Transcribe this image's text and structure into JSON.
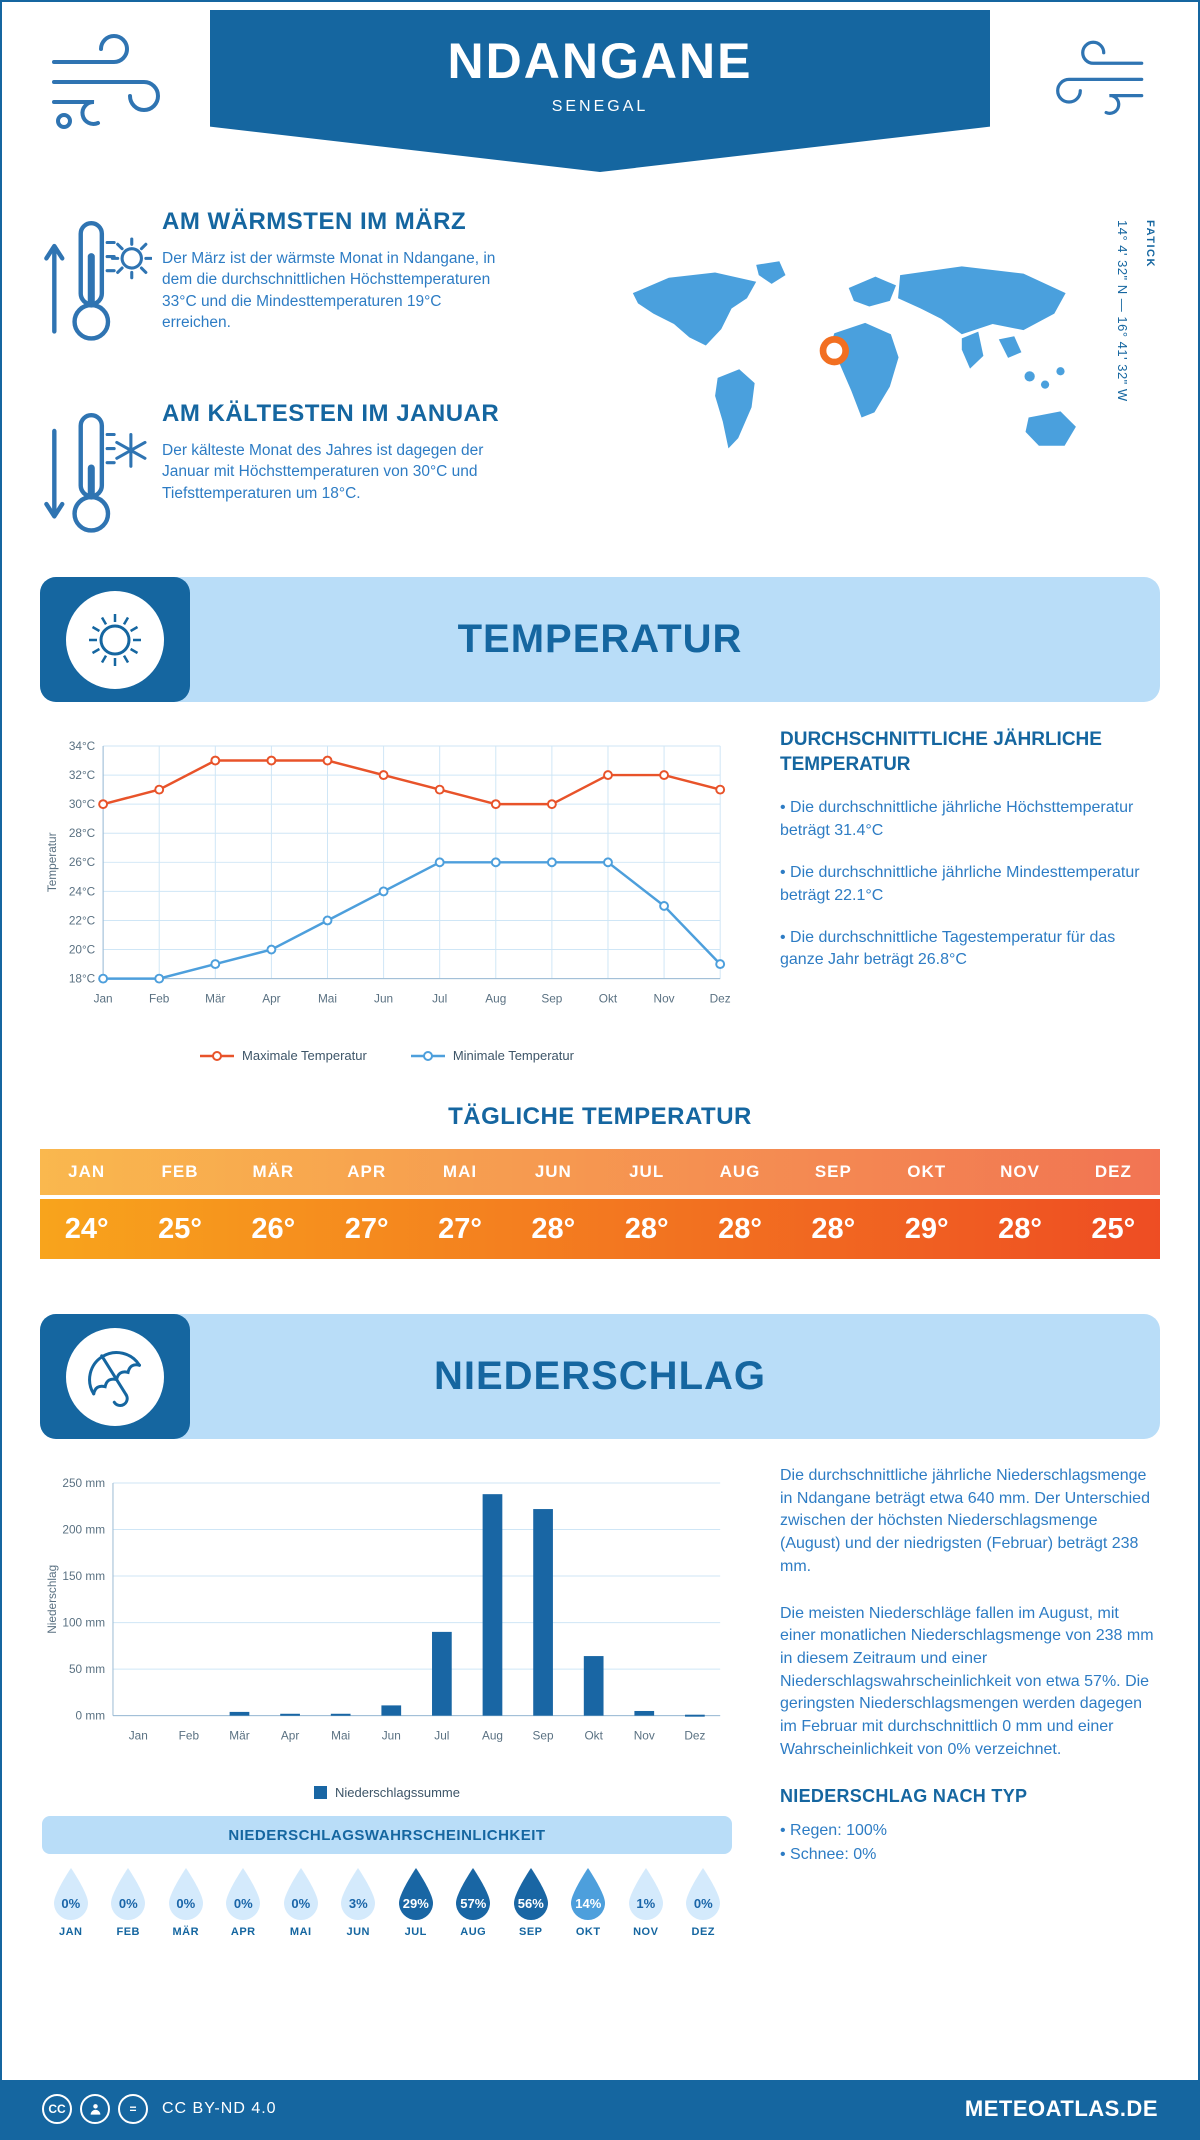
{
  "meta": {
    "title": "NDANGANE",
    "subtitle": "SENEGAL"
  },
  "intro": {
    "warm": {
      "heading": "AM WÄRMSTEN IM MÄRZ",
      "text": "Der März ist der wärmste Monat in Ndangane, in dem die durchschnittlichen Höchsttemperaturen 33°C und die Mindesttemperaturen 19°C erreichen."
    },
    "cold": {
      "heading": "AM KÄLTESTEN IM JANUAR",
      "text": "Der kälteste Monat des Jahres ist dagegen der Januar mit Höchsttemperaturen von 30°C und Tiefsttemperaturen um 18°C."
    },
    "map": {
      "region_label": "FATICK",
      "coordinates": "14° 4' 32\" N — 16° 41' 32\" W"
    }
  },
  "temperature_section": {
    "banner": "TEMPERATUR",
    "summary_heading": "DURCHSCHNITTLICHE JÄHRLICHE TEMPERATUR",
    "bullets": [
      "• Die durchschnittliche jährliche Höchsttemperatur beträgt 31.4°C",
      "• Die durchschnittliche jährliche Mindesttemperatur beträgt 22.1°C",
      "• Die durchschnittliche Tagestemperatur für das ganze Jahr beträgt 26.8°C"
    ],
    "daily_heading": "TÄGLICHE TEMPERATUR"
  },
  "precipitation_section": {
    "banner": "NIEDERSCHLAG",
    "paragraphs": [
      "Die durchschnittliche jährliche Niederschlagsmenge in Ndangane beträgt etwa 640 mm. Der Unterschied zwischen der höchsten Niederschlagsmenge (August) und der niedrigsten (Februar) beträgt 238 mm.",
      "Die meisten Niederschläge fallen im August, mit einer monatlichen Niederschlagsmenge von 238 mm in diesem Zeitraum und einer Niederschlagswahrscheinlichkeit von etwa 57%. Die geringsten Niederschlagsmengen werden dagegen im Februar mit durchschnittlich 0 mm und einer Wahrscheinlichkeit von 0% verzeichnet."
    ],
    "probability_heading": "NIEDERSCHLAGSWAHRSCHEINLICHKEIT",
    "type_heading": "NIEDERSCHLAG NACH TYP",
    "type_bullets": [
      "• Regen: 100%",
      "• Schnee: 0%"
    ]
  },
  "footer": {
    "license": "CC BY-ND 4.0",
    "brand": "METEOATLAS.DE"
  },
  "colors": {
    "dark_blue": "#1566a0",
    "light_blue_banner": "#b9ddf8",
    "body_text_blue": "#2d7cc4",
    "map_blue": "#4aa0dd",
    "marker_orange": "#f26f21",
    "max_line": "#e8532a",
    "min_line": "#4d9fdc",
    "bar_blue": "#1966a4",
    "gradient_left": "#f8a41c",
    "gradient_right": "#ee4d23",
    "droplet_light": "#d4eafc",
    "droplet_medium": "#4d9fdc",
    "droplet_dark": "#1966a4"
  },
  "chart_data": [
    {
      "id": "temperature_line",
      "type": "line",
      "categories": [
        "Jan",
        "Feb",
        "Mär",
        "Apr",
        "Mai",
        "Jun",
        "Jul",
        "Aug",
        "Sep",
        "Okt",
        "Nov",
        "Dez"
      ],
      "series": [
        {
          "name": "Maximale Temperatur",
          "color": "#e8532a",
          "values": [
            30,
            31,
            33,
            33,
            33,
            32,
            31,
            30,
            30,
            32,
            32,
            31
          ]
        },
        {
          "name": "Minimale Temperatur",
          "color": "#4d9fdc",
          "values": [
            18,
            18,
            19,
            20,
            22,
            24,
            26,
            26,
            26,
            26,
            23,
            19
          ]
        }
      ],
      "ylabel": "Temperatur",
      "ylim": [
        18,
        34
      ],
      "ytick_step": 2,
      "ytick_suffix": "°C",
      "grid": true,
      "legend_position": "bottom"
    },
    {
      "id": "daily_temperature",
      "type": "table",
      "categories": [
        "JAN",
        "FEB",
        "MÄR",
        "APR",
        "MAI",
        "JUN",
        "JUL",
        "AUG",
        "SEP",
        "OKT",
        "NOV",
        "DEZ"
      ],
      "values": [
        "24°",
        "25°",
        "26°",
        "27°",
        "27°",
        "28°",
        "28°",
        "28°",
        "28°",
        "29°",
        "28°",
        "25°"
      ]
    },
    {
      "id": "precipitation_bar",
      "type": "bar",
      "categories": [
        "Jan",
        "Feb",
        "Mär",
        "Apr",
        "Mai",
        "Jun",
        "Jul",
        "Aug",
        "Sep",
        "Okt",
        "Nov",
        "Dez"
      ],
      "values": [
        0,
        0,
        4,
        2,
        2,
        11,
        90,
        238,
        222,
        64,
        5,
        1
      ],
      "series_name": "Niederschlagssumme",
      "ylabel": "Niederschlag",
      "ylim": [
        0,
        250
      ],
      "ytick_step": 50,
      "ytick_suffix": " mm",
      "grid": true,
      "legend_position": "bottom"
    },
    {
      "id": "precipitation_probability",
      "type": "droplets",
      "categories": [
        "JAN",
        "FEB",
        "MÄR",
        "APR",
        "MAI",
        "JUN",
        "JUL",
        "AUG",
        "SEP",
        "OKT",
        "NOV",
        "DEZ"
      ],
      "values": [
        0,
        0,
        0,
        0,
        0,
        3,
        29,
        57,
        56,
        14,
        1,
        0
      ],
      "labels": [
        "0%",
        "0%",
        "0%",
        "0%",
        "0%",
        "3%",
        "29%",
        "57%",
        "56%",
        "14%",
        "1%",
        "0%"
      ]
    }
  ]
}
